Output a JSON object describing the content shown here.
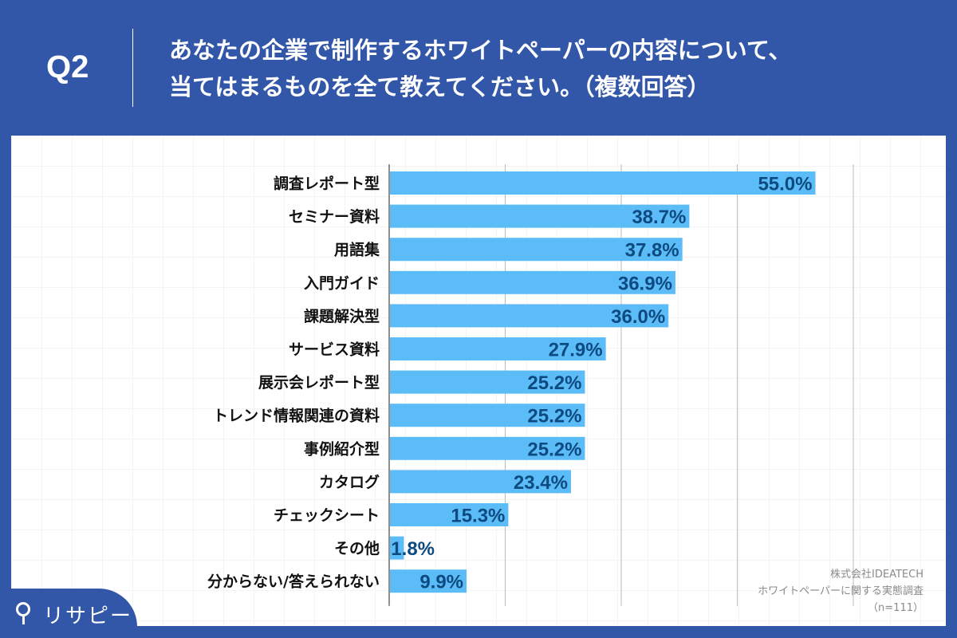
{
  "header": {
    "question_number": "Q2",
    "title_line1": "あなたの企業で制作するホワイトペーパーの内容について、",
    "title_line2": "当てはまるものを全て教えてください。（複数回答）"
  },
  "source": {
    "company": "株式会社IDEATECH",
    "survey": "ホワイトペーパーに関する実態調査",
    "sample": "（n=111）"
  },
  "logo": {
    "text": "リサピー"
  },
  "colors": {
    "header_bg": "#3357a8",
    "bar": "#5bbcf8",
    "value_label": "#0d4a80"
  },
  "chart_data": {
    "type": "bar",
    "orientation": "horizontal",
    "categories": [
      "調査レポート型",
      "セミナー資料",
      "用語集",
      "入門ガイド",
      "課題解決型",
      "サービス資料",
      "展示会レポート型",
      "トレンド情報関連の資料",
      "事例紹介型",
      "カタログ",
      "チェックシート",
      "その他",
      "分からない/答えられない"
    ],
    "values": [
      55.0,
      38.7,
      37.8,
      36.9,
      36.0,
      27.9,
      25.2,
      25.2,
      25.2,
      23.4,
      15.3,
      1.8,
      9.9
    ],
    "value_labels": [
      "55.0%",
      "38.7%",
      "37.8%",
      "36.9%",
      "36.0%",
      "27.9%",
      "25.2%",
      "25.2%",
      "25.2%",
      "23.4%",
      "15.3%",
      "1.8%",
      "9.9%"
    ],
    "xlim": [
      0,
      60
    ],
    "gridlines": [
      15,
      30,
      45,
      60
    ],
    "grid": true
  }
}
